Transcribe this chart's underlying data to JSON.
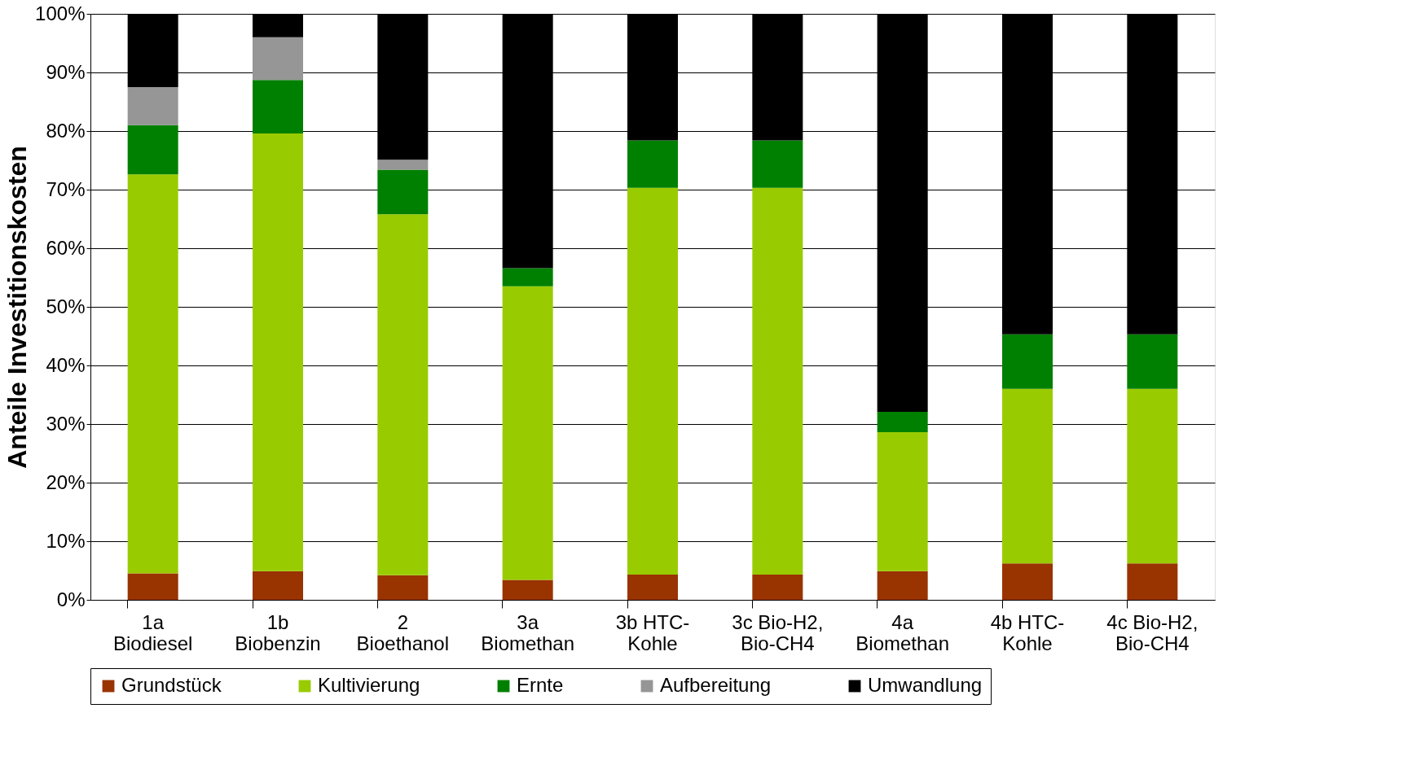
{
  "chart_data": {
    "type": "bar",
    "stacked": true,
    "ylabel": "Anteile Investitionskosten",
    "categories": [
      "1a\nBiodiesel",
      "1b\nBiobenzin",
      "2\nBioethanol",
      "3a\nBiomethan",
      "3b HTC-\nKohle",
      "3c Bio-H2,\nBio-CH4",
      "4a\nBiomethan",
      "4b HTC-\nKohle",
      "4c Bio-H2,\nBio-CH4"
    ],
    "series": [
      {
        "name": "Grundstück",
        "color": "#993300",
        "values": [
          4.5,
          4.9,
          4.2,
          3.4,
          4.3,
          4.3,
          4.9,
          6.2,
          6.2
        ]
      },
      {
        "name": "Kultivierung",
        "color": "#99cc00",
        "values": [
          68.1,
          74.7,
          61.6,
          50.1,
          66.0,
          66.0,
          23.7,
          29.8,
          29.8
        ]
      },
      {
        "name": "Ernte",
        "color": "#008000",
        "values": [
          8.4,
          9.1,
          7.6,
          3.1,
          8.1,
          8.1,
          3.5,
          9.3,
          9.3
        ]
      },
      {
        "name": "Aufbereitung",
        "color": "#969696",
        "values": [
          6.5,
          7.3,
          1.7,
          null,
          null,
          null,
          null,
          null,
          null
        ]
      },
      {
        "name": "Umwandlung",
        "color": "#000000",
        "values": [
          12.5,
          4.0,
          24.9,
          43.4,
          21.6,
          21.6,
          67.9,
          54.7,
          54.7
        ]
      }
    ],
    "ylim": [
      0,
      100
    ],
    "yticks": [
      {
        "value": 0,
        "label": "0%"
      },
      {
        "value": 10,
        "label": "10%"
      },
      {
        "value": 20,
        "label": "20%"
      },
      {
        "value": 30,
        "label": "30%"
      },
      {
        "value": 40,
        "label": "40%"
      },
      {
        "value": 50,
        "label": "50%"
      },
      {
        "value": 60,
        "label": "60%"
      },
      {
        "value": 70,
        "label": "70%"
      },
      {
        "value": 80,
        "label": "80%"
      },
      {
        "value": 90,
        "label": "90%"
      },
      {
        "value": 100,
        "label": "100%"
      }
    ],
    "grid": "y",
    "legend": "bottom"
  }
}
